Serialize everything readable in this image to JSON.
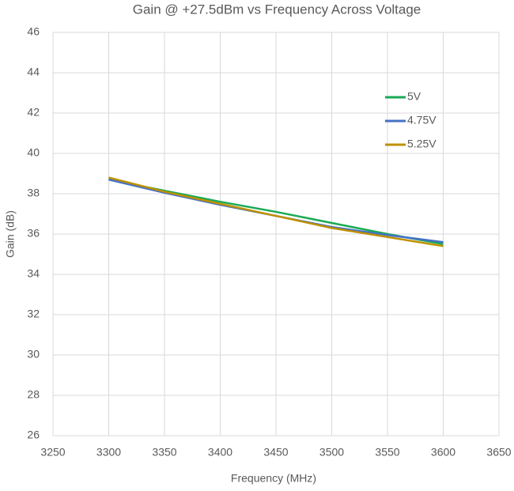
{
  "chart_data": {
    "type": "line",
    "title": "Gain @ +27.5dBm vs Frequency Across Voltage",
    "x_label": "Frequency (MHz)",
    "y_label": "Gain (dB)",
    "x": [
      3300,
      3350,
      3400,
      3450,
      3500,
      3550,
      3600
    ],
    "series": [
      {
        "name": "5V",
        "color": "#1aaa55",
        "values": [
          38.7,
          38.15,
          37.6,
          37.1,
          36.55,
          36.0,
          35.5
        ]
      },
      {
        "name": "4.75V",
        "color": "#4472c4",
        "values": [
          38.7,
          38.05,
          37.45,
          36.9,
          36.35,
          35.95,
          35.6
        ]
      },
      {
        "name": "5.25V",
        "color": "#bf9000",
        "values": [
          38.8,
          38.1,
          37.5,
          36.9,
          36.3,
          35.85,
          35.4
        ]
      }
    ],
    "xlim": [
      3250,
      3650
    ],
    "xticks": [
      3250,
      3300,
      3350,
      3400,
      3450,
      3500,
      3550,
      3600,
      3650
    ],
    "ylim": [
      26,
      46
    ],
    "yticks": [
      26,
      28,
      30,
      32,
      34,
      36,
      38,
      40,
      42,
      44,
      46
    ],
    "grid": true
  }
}
